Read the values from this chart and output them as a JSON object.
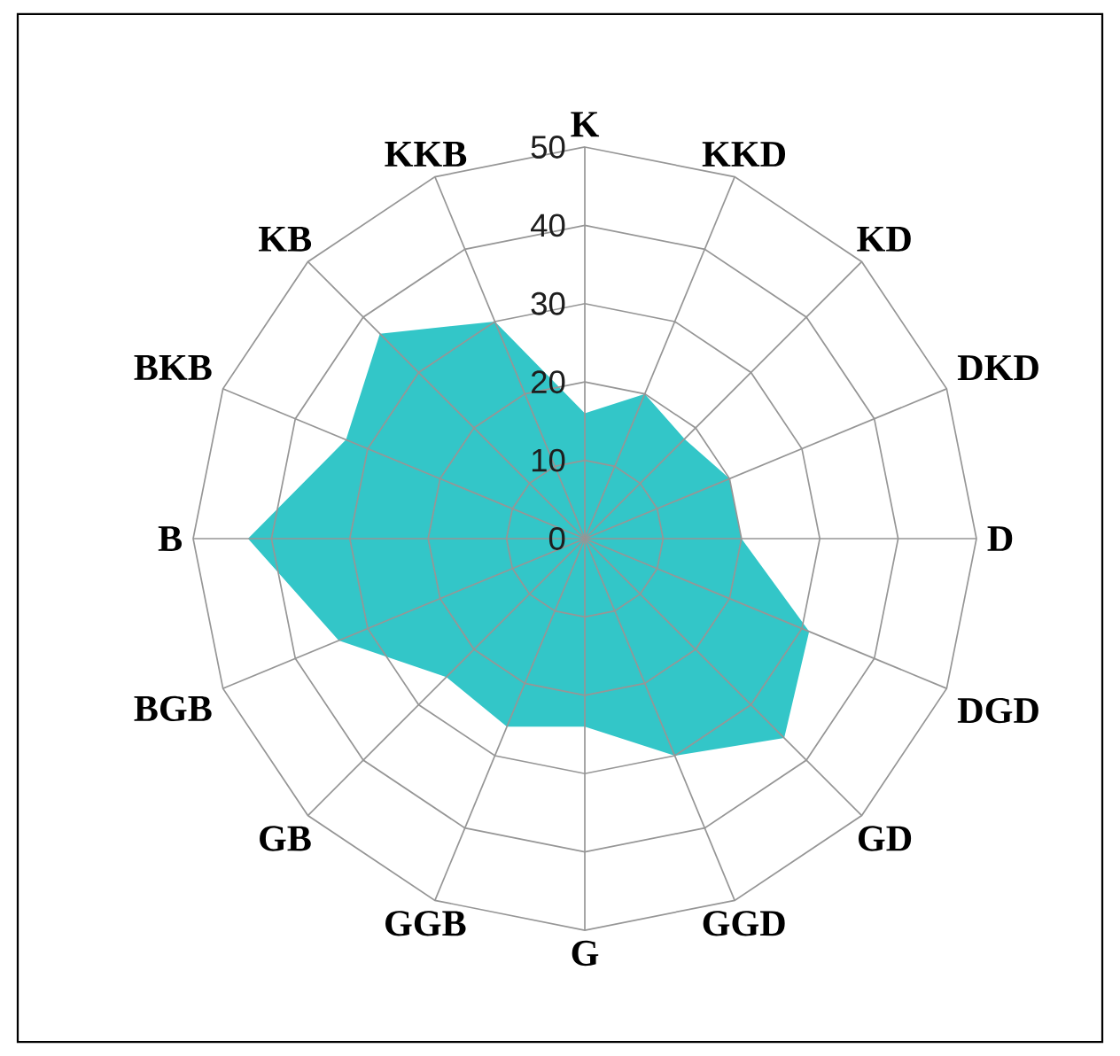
{
  "chart_data": {
    "type": "radar",
    "categories": [
      "K",
      "KKD",
      "KD",
      "DKD",
      "D",
      "DGD",
      "GD",
      "GGD",
      "G",
      "GGB",
      "GB",
      "BGB",
      "B",
      "BKB",
      "KB",
      "KKB"
    ],
    "series": [
      {
        "color": "#33c6c8",
        "values": [
          16,
          20,
          18,
          20,
          20,
          31,
          36,
          30,
          24,
          26,
          25,
          34,
          43,
          33,
          37,
          30
        ]
      }
    ],
    "ylim": [
      0,
      50
    ],
    "yticks": [
      0,
      10,
      20,
      30,
      40,
      50
    ],
    "grid": true
  }
}
